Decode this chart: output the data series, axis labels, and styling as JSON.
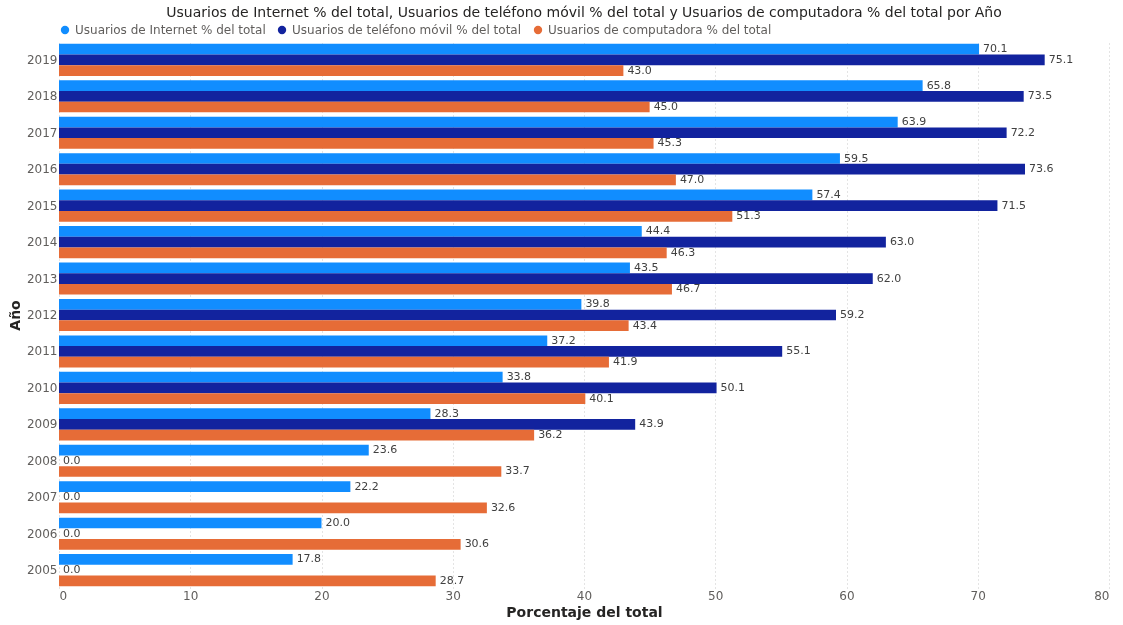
{
  "chart_data": {
    "type": "bar",
    "orientation": "horizontal",
    "title": "Usuarios de Internet % del total, Usuarios de teléfono móvil % del total y Usuarios de computadora % del total por Año",
    "xlabel": "Porcentaje del total",
    "ylabel": "Año",
    "categories": [
      "2019",
      "2018",
      "2017",
      "2016",
      "2015",
      "2014",
      "2013",
      "2012",
      "2011",
      "2010",
      "2009",
      "2008",
      "2007",
      "2006",
      "2005"
    ],
    "series": [
      {
        "name": "Usuarios de Internet % del total",
        "color": "#118dff",
        "values": [
          70.1,
          65.8,
          63.9,
          59.5,
          57.4,
          44.4,
          43.5,
          39.8,
          37.2,
          33.8,
          28.3,
          23.6,
          22.2,
          20,
          17.8
        ],
        "value_labels": [
          "70.1",
          "65.8",
          "63.9",
          "59.5",
          "57.4",
          "44.4",
          "43.5",
          "39.8",
          "37.2",
          "33.8",
          "28.3",
          "23.6",
          "22.2",
          "20.0",
          "17.8"
        ]
      },
      {
        "name": "Usuarios de teléfono móvil % del total",
        "color": "#12239e",
        "values": [
          75.1,
          73.5,
          72.2,
          73.6,
          71.5,
          63,
          62,
          59.2,
          55.1,
          50.1,
          43.9,
          0,
          0,
          0,
          0
        ],
        "value_labels": [
          "75.1",
          "73.5",
          "72.2",
          "73.6",
          "71.5",
          "63.0",
          "62.0",
          "59.2",
          "55.1",
          "50.1",
          "43.9",
          "0.0",
          "0.0",
          "0.0",
          "0.0"
        ]
      },
      {
        "name": "Usuarios de computadora % del total",
        "color": "#e66c37",
        "values": [
          43,
          45,
          45.3,
          47,
          51.3,
          46.3,
          46.7,
          43.4,
          41.9,
          40.1,
          36.2,
          33.7,
          32.6,
          30.6,
          28.7
        ],
        "value_labels": [
          "43.0",
          "45.0",
          "45.3",
          "47.0",
          "51.3",
          "46.3",
          "46.7",
          "43.4",
          "41.9",
          "40.1",
          "36.2",
          "33.7",
          "32.6",
          "30.6",
          "28.7"
        ]
      }
    ],
    "xlim": [
      0,
      80
    ],
    "xticks": [
      0,
      10,
      20,
      30,
      40,
      50,
      60,
      70,
      80
    ],
    "grid": "x",
    "legend": "top left"
  }
}
